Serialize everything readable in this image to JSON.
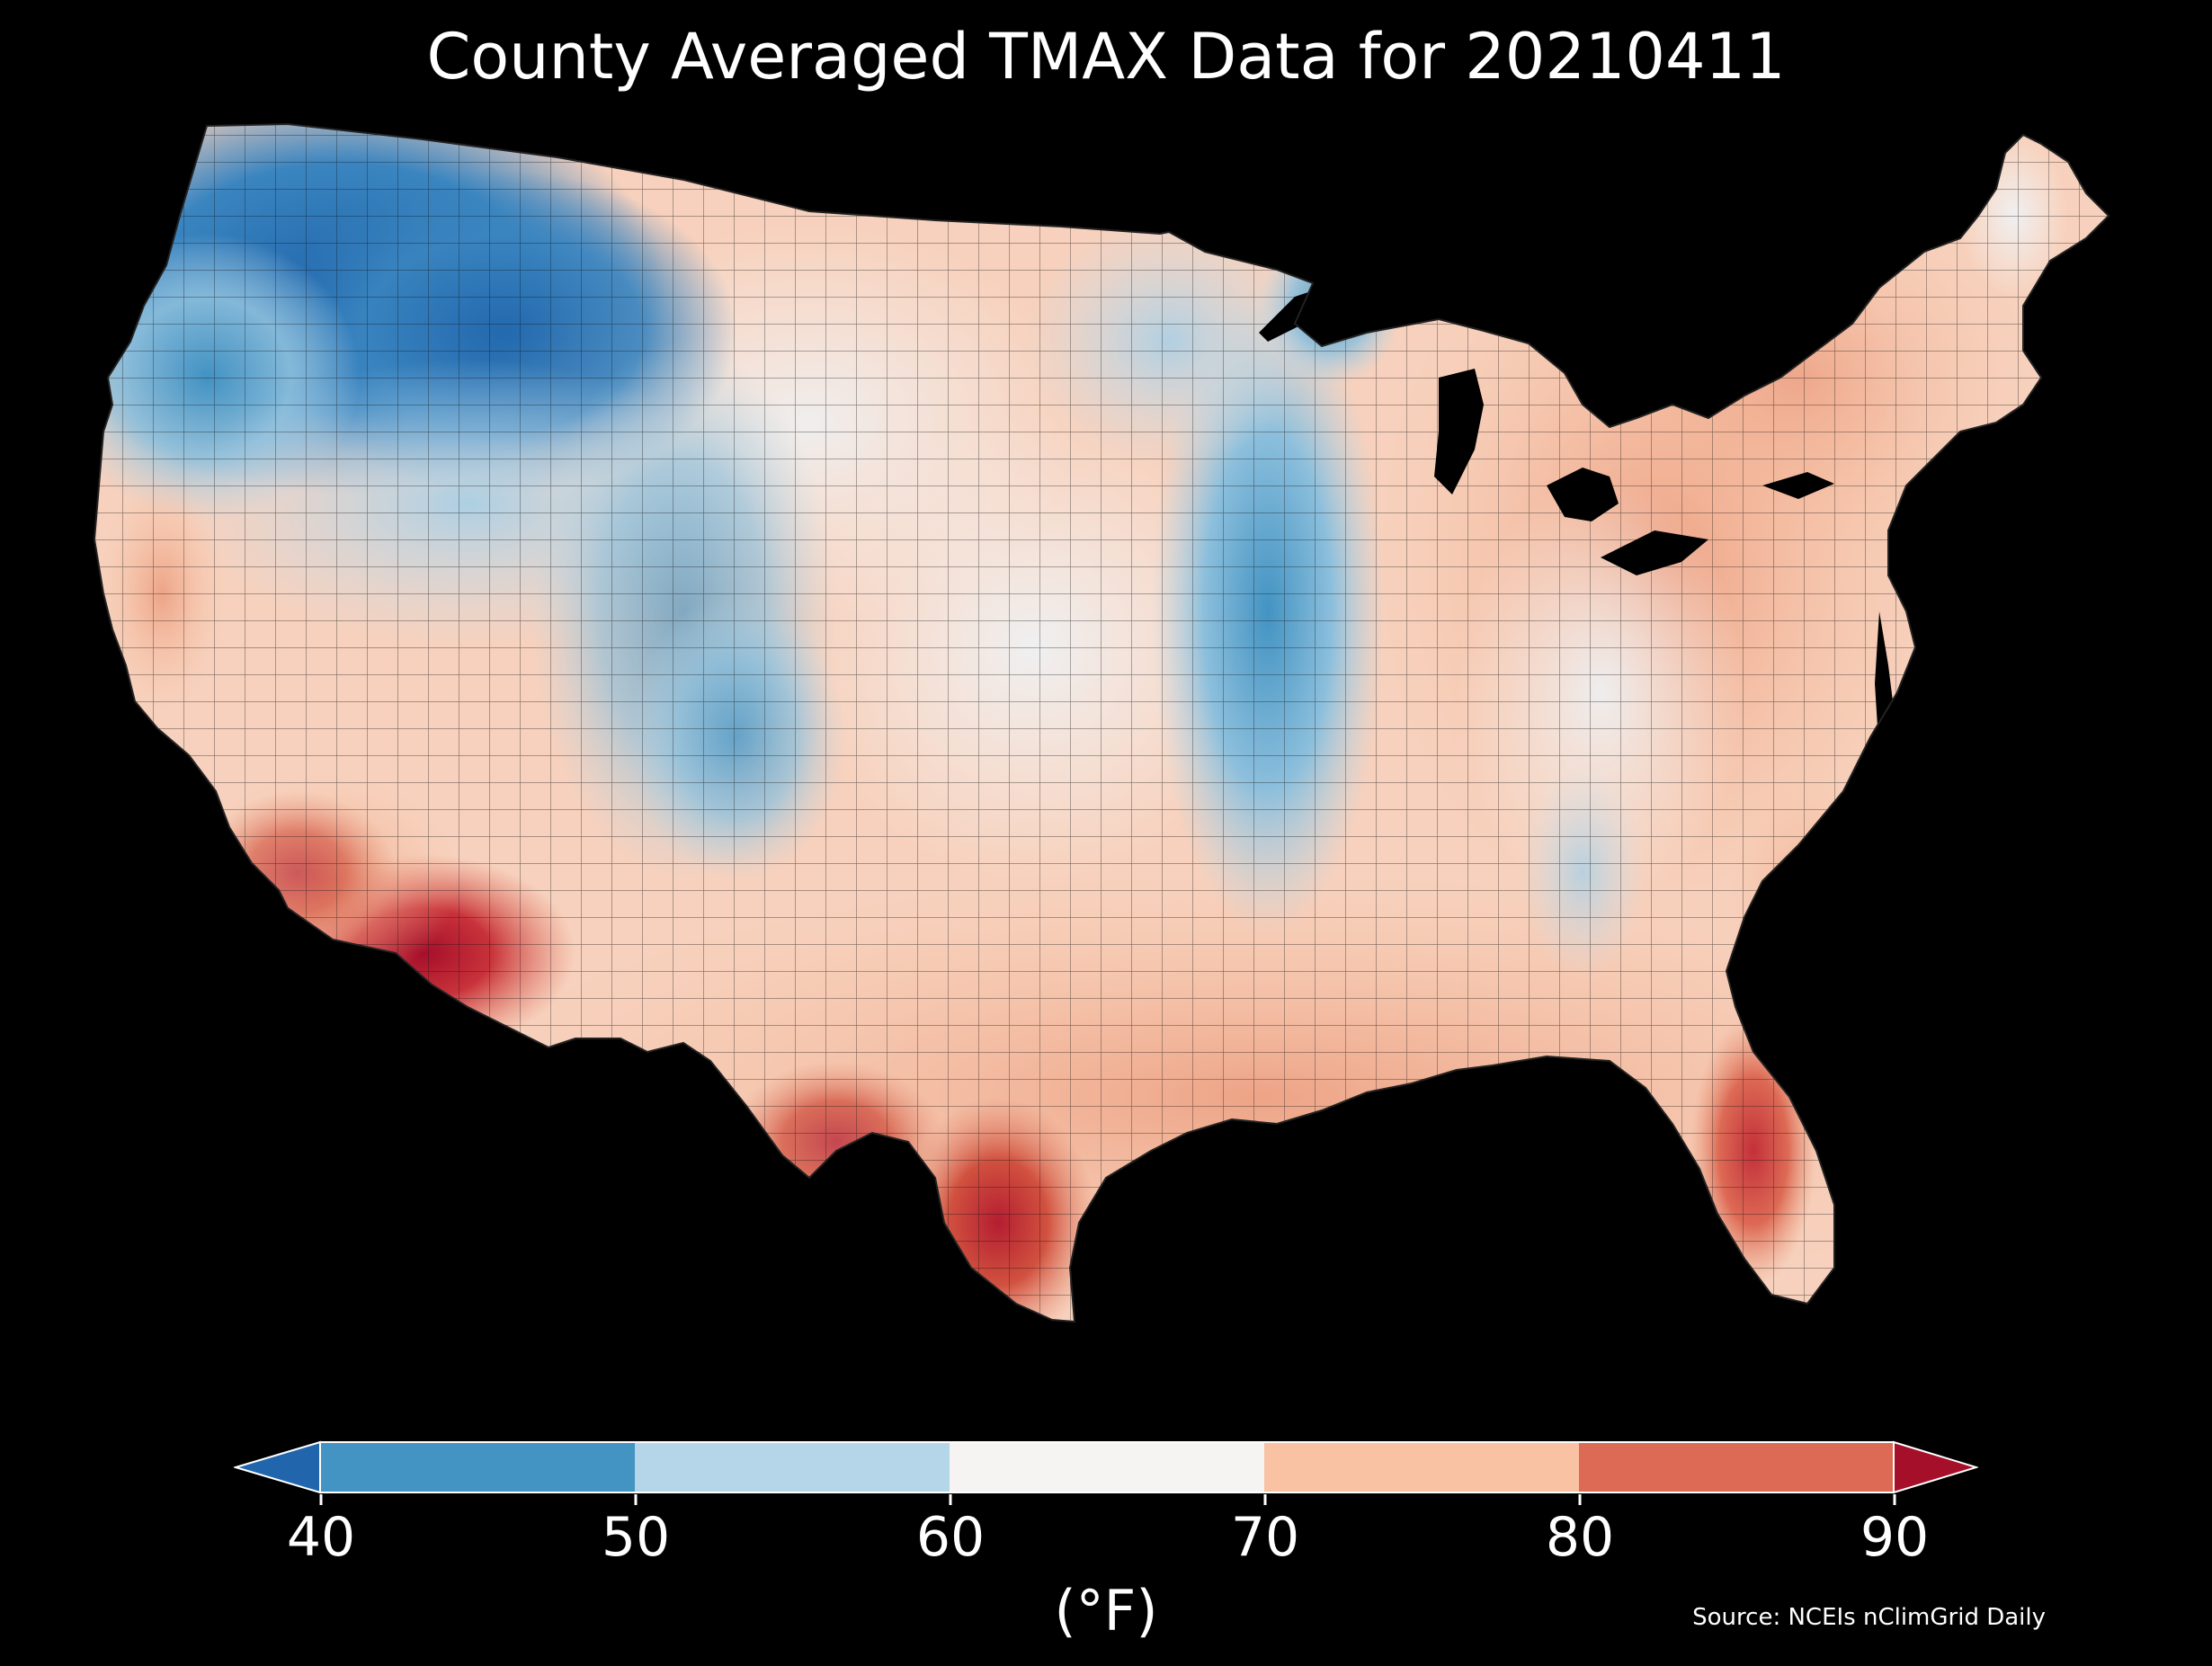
{
  "title": "County Averaged TMAX Data for 20210411",
  "legend": {
    "unit_label": "(°F)",
    "ticks": [
      "40",
      "50",
      "60",
      "70",
      "80",
      "90"
    ],
    "bins": [
      {
        "range": "<40",
        "color": "#2166ac"
      },
      {
        "range": "40-50",
        "color": "#4393c3"
      },
      {
        "range": "50-60",
        "color": "#b5d6e8"
      },
      {
        "range": "60-70",
        "color": "#f6f4f2"
      },
      {
        "range": "70-80",
        "color": "#f8c2a3"
      },
      {
        "range": "80-90",
        "color": "#dd6a55"
      },
      {
        "range": ">90",
        "color": "#a50f2a"
      }
    ]
  },
  "source": "Source: NCEIs nClimGrid Daily",
  "map": {
    "region": "Contiguous United States",
    "background_color": "#000000",
    "water_color": "#000000",
    "border_color": "#1a1a1a"
  }
}
